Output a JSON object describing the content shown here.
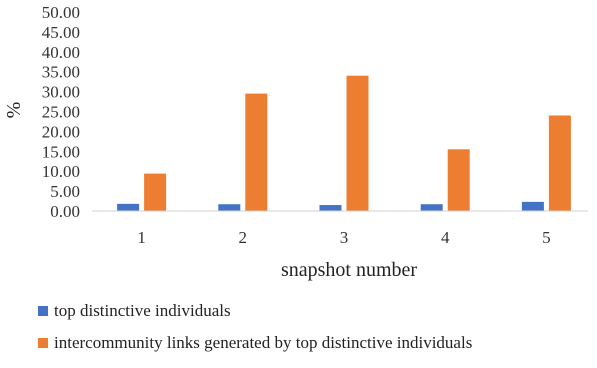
{
  "chart_data": {
    "type": "bar",
    "xlabel": "snapshot number",
    "ylabel": "%",
    "ylim": [
      0,
      50
    ],
    "y_ticks": [
      "0.00",
      "5.00",
      "10.00",
      "15.00",
      "20.00",
      "25.00",
      "30.00",
      "35.00",
      "40.00",
      "45.00",
      "50.00"
    ],
    "categories": [
      "1",
      "2",
      "3",
      "4",
      "5"
    ],
    "series": [
      {
        "name": "top distinctive individuals",
        "color": "#4472c4",
        "values": [
          1.8,
          1.7,
          1.5,
          1.7,
          2.3
        ]
      },
      {
        "name": "intercommunity links generated by top distinctive individuals",
        "color": "#ed7d31",
        "values": [
          9.4,
          29.5,
          34.0,
          15.5,
          24.0
        ]
      }
    ],
    "grid": false,
    "legend_position": "bottom-left"
  }
}
